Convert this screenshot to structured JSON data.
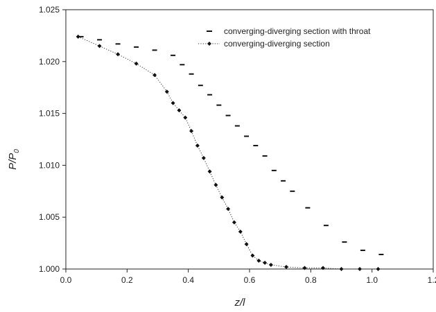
{
  "chart_data": {
    "type": "scatter",
    "title": "",
    "xlabel": "z/l",
    "ylabel": "P/P₀",
    "ylabel_main": "P/P",
    "ylabel_sub": "0",
    "xlim": [
      0.0,
      1.2
    ],
    "ylim": [
      1.0,
      1.025
    ],
    "x_ticks": [
      "0.0",
      "0.2",
      "0.4",
      "0.6",
      "0.8",
      "1.0",
      "1.2"
    ],
    "y_ticks": [
      "1.000",
      "1.005",
      "1.010",
      "1.015",
      "1.020",
      "1.025"
    ],
    "grid": false,
    "legend_position": "top-right",
    "series": [
      {
        "name": "converging-diverging section with throat",
        "marker": "dash",
        "line": "none",
        "color": "#111111",
        "x": [
          0.05,
          0.11,
          0.17,
          0.23,
          0.29,
          0.35,
          0.38,
          0.41,
          0.44,
          0.47,
          0.5,
          0.53,
          0.56,
          0.59,
          0.62,
          0.65,
          0.68,
          0.71,
          0.74,
          0.79,
          0.85,
          0.91,
          0.97,
          1.03
        ],
        "y": [
          1.0224,
          1.0221,
          1.0217,
          1.0214,
          1.0211,
          1.0206,
          1.0197,
          1.0188,
          1.0177,
          1.0168,
          1.0158,
          1.0148,
          1.0138,
          1.0128,
          1.0119,
          1.0109,
          1.0095,
          1.0085,
          1.0075,
          1.0059,
          1.0042,
          1.0026,
          1.0018,
          1.0014
        ]
      },
      {
        "name": "converging-diverging section",
        "marker": "diamond",
        "line": "dotted",
        "color": "#111111",
        "x": [
          0.04,
          0.11,
          0.17,
          0.23,
          0.29,
          0.33,
          0.35,
          0.37,
          0.39,
          0.41,
          0.43,
          0.45,
          0.47,
          0.49,
          0.51,
          0.53,
          0.55,
          0.57,
          0.59,
          0.61,
          0.63,
          0.65,
          0.67,
          0.72,
          0.78,
          0.84,
          0.9,
          0.96,
          1.02
        ],
        "y": [
          1.0224,
          1.0215,
          1.0207,
          1.0198,
          1.0187,
          1.0171,
          1.016,
          1.0153,
          1.0146,
          1.0133,
          1.0119,
          1.0107,
          1.0094,
          1.0081,
          1.0069,
          1.0058,
          1.0045,
          1.0036,
          1.0024,
          1.0013,
          1.0008,
          1.0006,
          1.0004,
          1.0002,
          1.0001,
          1.0001,
          1.0,
          1.0,
          1.0
        ]
      }
    ]
  }
}
